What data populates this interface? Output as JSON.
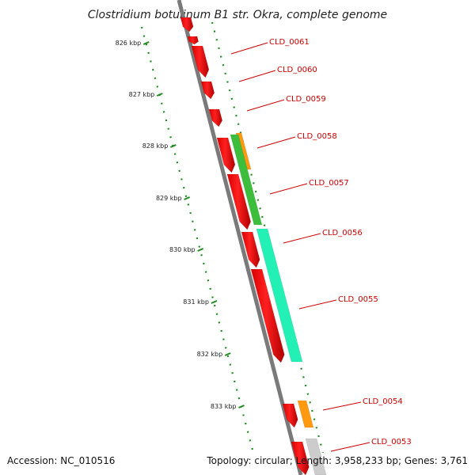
{
  "title": "Clostridium botulinum B1 str. Okra, complete genome",
  "ruler": {
    "ticks": [
      {
        "kbp": 826,
        "label": "826 kbp"
      },
      {
        "kbp": 827,
        "label": "827 kbp"
      },
      {
        "kbp": 828,
        "label": "828 kbp"
      },
      {
        "kbp": 829,
        "label": "829 kbp"
      },
      {
        "kbp": 830,
        "label": "830 kbp"
      },
      {
        "kbp": 831,
        "label": "831 kbp"
      },
      {
        "kbp": 832,
        "label": "832 kbp"
      },
      {
        "kbp": 833,
        "label": "833 kbp"
      }
    ]
  },
  "genes": [
    {
      "label": "CLD_0061"
    },
    {
      "label": "CLD_0060"
    },
    {
      "label": "CLD_0059"
    },
    {
      "label": "CLD_0058"
    },
    {
      "label": "CLD_0057"
    },
    {
      "label": "CLD_0056"
    },
    {
      "label": "CLD_0055"
    },
    {
      "label": "CLD_0054"
    },
    {
      "label": "CLD_0053"
    }
  ],
  "colors": {
    "backbone": "#7a7a7a",
    "ruler": "#1e8c1e",
    "gene_label": "#cc0000",
    "cds": "#ff1111",
    "feature_green": "#3cbe3c",
    "feature_orange": "#ff9a10",
    "feature_cyan": "#22f0b4",
    "feature_gray": "#cccccc"
  },
  "footer": {
    "accession": "Accession: NC_010516",
    "summary": "Topology: circular; Length: 3,958,233 bp; Genes: 3,761"
  }
}
